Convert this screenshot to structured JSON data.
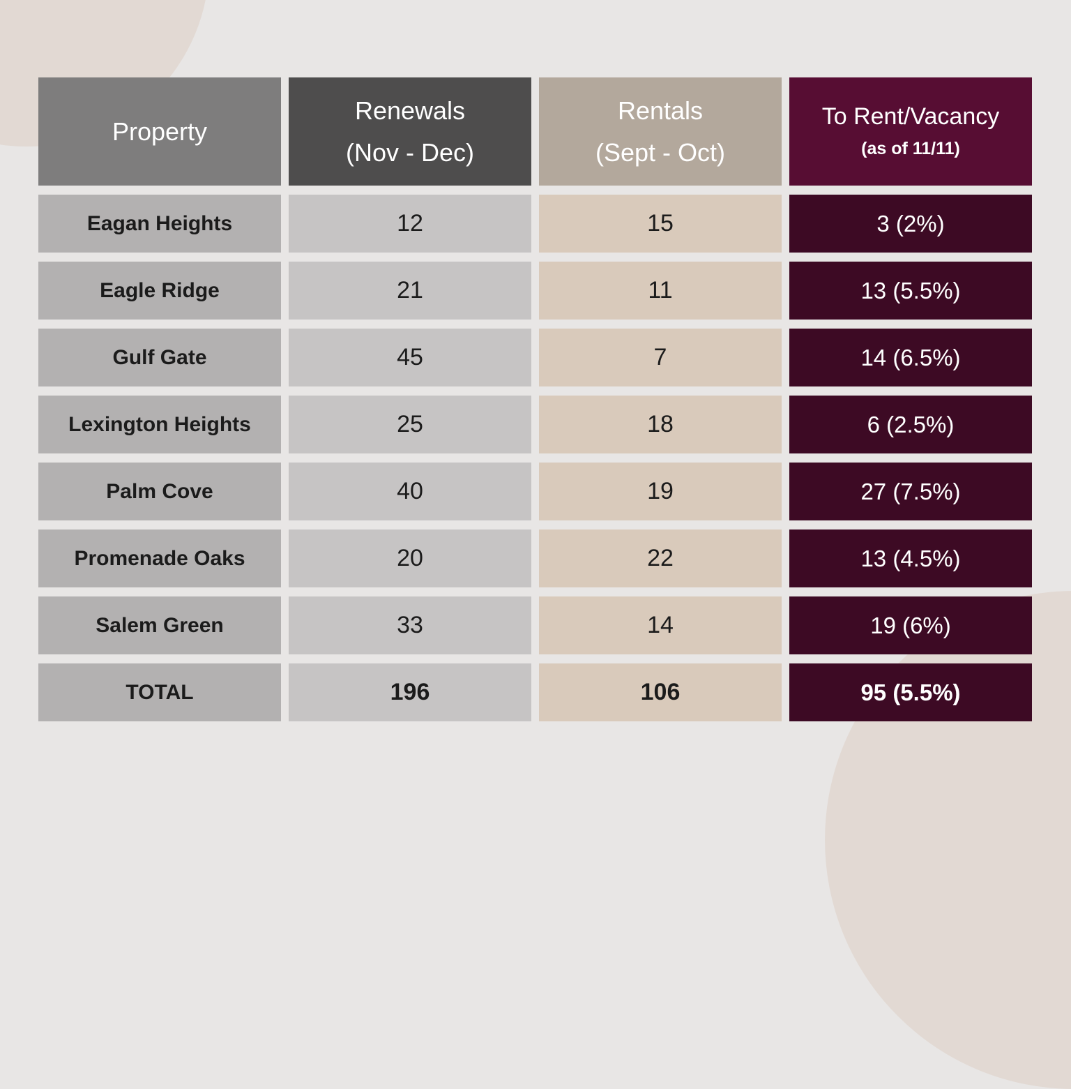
{
  "colors": {
    "bg": "#e8e6e5",
    "blob": "#e2d9d3",
    "property_head": "#7e7d7d",
    "renewals_head": "#4e4d4d",
    "rentals_head": "#b3a89c",
    "vacancy_head": "#570d33",
    "property_cell": "#b3b1b1",
    "renewals_cell": "#c6c4c4",
    "rentals_cell": "#d9cabb",
    "vacancy_cell": "#3d0a24",
    "text_dark": "#1b1b1b",
    "text_light": "#ffffff"
  },
  "table": {
    "columns": [
      {
        "label": "Property",
        "sublabel": ""
      },
      {
        "label": "Renewals",
        "sublabel": "(Nov - Dec)"
      },
      {
        "label": "Rentals",
        "sublabel": "(Sept - Oct)"
      },
      {
        "label": "To Rent/Vacancy",
        "sublabel": "(as of 11/11)"
      }
    ],
    "rows": [
      {
        "property": "Eagan Heights",
        "renewals": "12",
        "rentals": "15",
        "vacancy": "3 (2%)"
      },
      {
        "property": "Eagle Ridge",
        "renewals": "21",
        "rentals": "11",
        "vacancy": "13 (5.5%)"
      },
      {
        "property": "Gulf Gate",
        "renewals": "45",
        "rentals": "7",
        "vacancy": "14 (6.5%)"
      },
      {
        "property": "Lexington Heights",
        "renewals": "25",
        "rentals": "18",
        "vacancy": "6 (2.5%)"
      },
      {
        "property": "Palm Cove",
        "renewals": "40",
        "rentals": "19",
        "vacancy": "27 (7.5%)"
      },
      {
        "property": "Promenade Oaks",
        "renewals": "20",
        "rentals": "22",
        "vacancy": "13 (4.5%)"
      },
      {
        "property": "Salem Green",
        "renewals": "33",
        "rentals": "14",
        "vacancy": "19 (6%)"
      },
      {
        "property": "TOTAL",
        "renewals": "196",
        "rentals": "106",
        "vacancy": "95 (5.5%)"
      }
    ]
  }
}
